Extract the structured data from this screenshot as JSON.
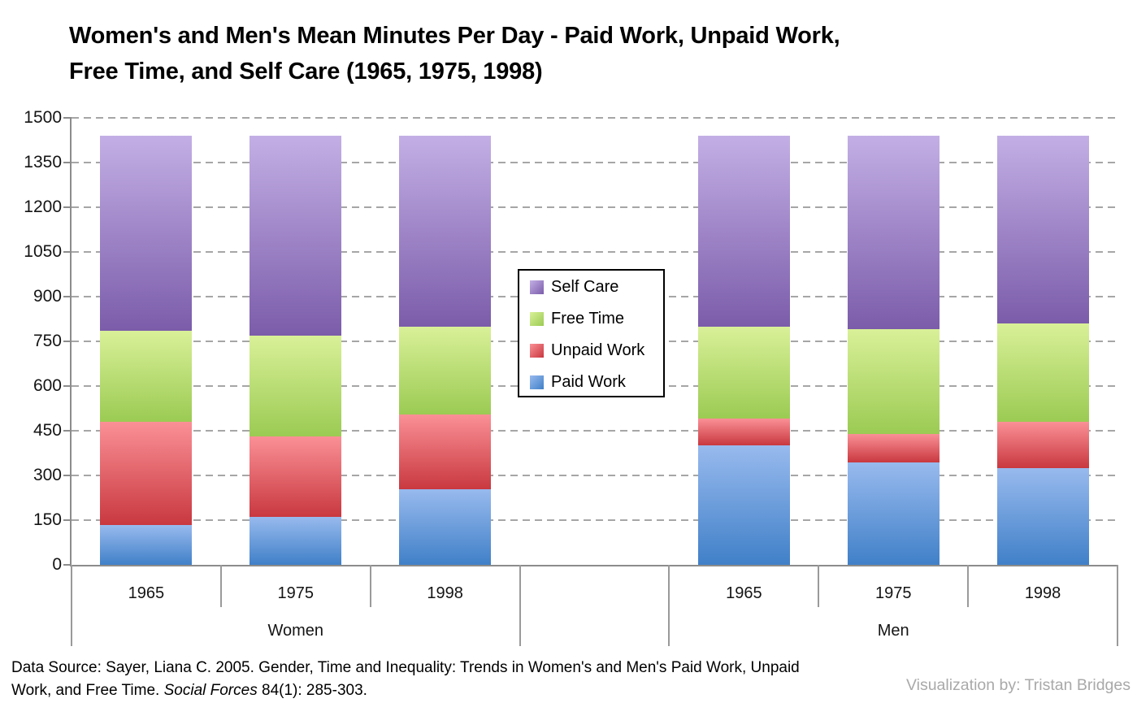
{
  "title": "Women's and Men's Mean Minutes Per Day - Paid Work, Unpaid Work, Free Time, and Self Care (1965, 1975, 1998)",
  "footer": {
    "line1": "Data Source: Sayer, Liana C. 2005. Gender, Time and Inequality: Trends in Women's and Men's Paid Work, Unpaid",
    "line2_before_italic": "Work, and Free Time. ",
    "line2_italic": "Social Forces",
    "line2_after_italic": " 84(1): 285-303."
  },
  "credit": "Visualization by: Tristan Bridges",
  "chart_data": {
    "type": "bar",
    "stacked": true,
    "title": "Women's and Men's Mean Minutes Per Day - Paid Work, Unpaid Work, Free Time, and Self Care (1965, 1975, 1998)",
    "groups": [
      "Women",
      "Men"
    ],
    "categories": [
      "1965",
      "1975",
      "1998"
    ],
    "unit": "minutes per day",
    "bar_total_minutes": 1440,
    "ylim": [
      0,
      1500
    ],
    "ytick_interval": 150,
    "yticks": [
      0,
      150,
      300,
      450,
      600,
      750,
      900,
      1050,
      1200,
      1350,
      1500
    ],
    "grid": "dashed horizontal gridlines",
    "legend_position": "inside plot, centered between Women and Men groups",
    "legend_order": [
      "Self Care",
      "Free Time",
      "Unpaid Work",
      "Paid Work"
    ],
    "series": [
      {
        "name": "Paid Work",
        "color_top": "#98baee",
        "color_bottom": "#4080c8",
        "values": {
          "Women": [
            135,
            160,
            255
          ],
          "Men": [
            400,
            345,
            325
          ]
        }
      },
      {
        "name": "Unpaid Work",
        "color_top": "#fa9096",
        "color_bottom": "#c9383f",
        "values": {
          "Women": [
            345,
            270,
            250
          ],
          "Men": [
            90,
            95,
            155
          ]
        }
      },
      {
        "name": "Free Time",
        "color_top": "#d9f098",
        "color_bottom": "#9bcb53",
        "values": {
          "Women": [
            305,
            340,
            295
          ],
          "Men": [
            310,
            350,
            330
          ]
        }
      },
      {
        "name": "Self Care",
        "color_top": "#c3afe5",
        "color_bottom": "#7b5caa",
        "values": {
          "Women": [
            655,
            670,
            640
          ],
          "Men": [
            640,
            650,
            630
          ]
        }
      }
    ],
    "colors": {
      "gridline": "#a6a6a6",
      "axis": "#8c8c8c",
      "credit_text": "#a9a9a9"
    }
  }
}
